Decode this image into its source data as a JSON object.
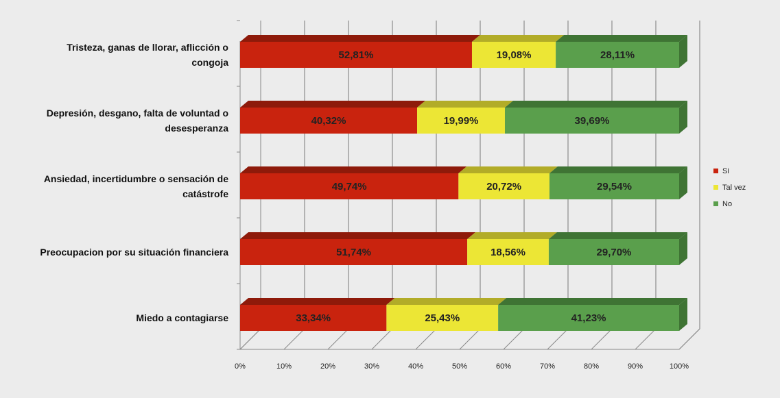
{
  "chart_data": {
    "type": "bar",
    "orientation": "horizontal",
    "stacked": "100%",
    "categories": [
      [
        "Tristeza, ganas de llorar, aflicción o",
        "congoja"
      ],
      [
        "Depresión, desgano, falta de voluntad o",
        "desesperanza"
      ],
      [
        "Ansiedad, incertidumbre o sensación de",
        "catástrofe"
      ],
      [
        "Preocupacion por su situación financiera"
      ],
      [
        "Miedo a contagiarse"
      ]
    ],
    "series": [
      {
        "name": "Si",
        "color": "#c9230e",
        "top_color": "#8e1a0a",
        "values": [
          52.81,
          40.32,
          49.74,
          51.74,
          33.34
        ],
        "labels": [
          "52,81%",
          "40,32%",
          "49,74%",
          "51,74%",
          "33,34%"
        ]
      },
      {
        "name": "Tal vez",
        "color": "#ece635",
        "top_color": "#b2ac28",
        "values": [
          19.08,
          19.99,
          20.72,
          18.56,
          25.43
        ],
        "labels": [
          "19,08%",
          "19,99%",
          "20,72%",
          "18,56%",
          "25,43%"
        ]
      },
      {
        "name": "No",
        "color": "#5a9f4c",
        "top_color": "#3f7434",
        "values": [
          28.11,
          39.69,
          29.54,
          29.7,
          41.23
        ],
        "labels": [
          "28,11%",
          "39,69%",
          "29,54%",
          "29,70%",
          "41,23%"
        ]
      }
    ],
    "xticks": [
      "0%",
      "10%",
      "20%",
      "30%",
      "40%",
      "50%",
      "60%",
      "70%",
      "80%",
      "90%",
      "100%"
    ],
    "xlim": [
      0,
      100
    ],
    "grid": true,
    "legend": "right"
  }
}
